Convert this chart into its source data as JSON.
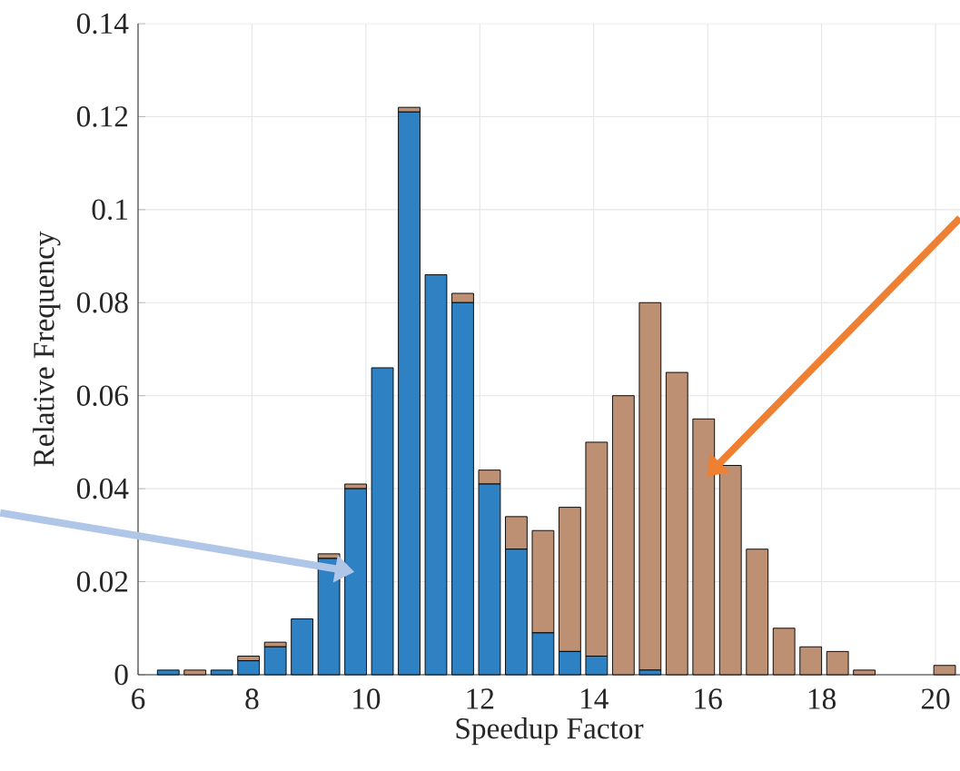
{
  "chart_data": {
    "type": "bar",
    "stacked": true,
    "x": [
      6.53,
      7.0,
      7.47,
      7.94,
      8.41,
      8.88,
      9.35,
      9.82,
      10.29,
      10.76,
      11.23,
      11.7,
      12.17,
      12.64,
      13.11,
      13.58,
      14.05,
      14.52,
      14.99,
      15.46,
      15.93,
      16.4,
      16.87,
      17.34,
      17.81,
      18.28,
      18.75,
      19.22,
      19.69,
      20.16
    ],
    "series": [
      {
        "color": "#2e82c4",
        "values": [
          0.001,
          0,
          0.001,
          0.003,
          0.006,
          0.012,
          0.025,
          0.04,
          0.066,
          0.121,
          0.086,
          0.08,
          0.041,
          0.027,
          0.009,
          0.005,
          0.004,
          0,
          0.001,
          0,
          0,
          0,
          0,
          0,
          0,
          0,
          0,
          0,
          0,
          0
        ]
      },
      {
        "color": "#bd9073",
        "values": [
          0,
          0.001,
          0,
          0.001,
          0.001,
          0,
          0.001,
          0.001,
          0,
          0.001,
          0,
          0.002,
          0.003,
          0.007,
          0.022,
          0.031,
          0.046,
          0.06,
          0.079,
          0.065,
          0.055,
          0.045,
          0.027,
          0.01,
          0.006,
          0.005,
          0.001,
          0,
          0,
          0.002
        ]
      }
    ],
    "xlabel": "Speedup Factor",
    "ylabel": "Relative Frequency",
    "xlim": [
      6,
      20.43
    ],
    "ylim": [
      0,
      0.14
    ],
    "xticks": [
      6,
      8,
      10,
      12,
      14,
      16,
      18,
      20
    ],
    "yticks": [
      0,
      0.02,
      0.04,
      0.06,
      0.08,
      0.1,
      0.12,
      0.14
    ],
    "grid": true
  }
}
